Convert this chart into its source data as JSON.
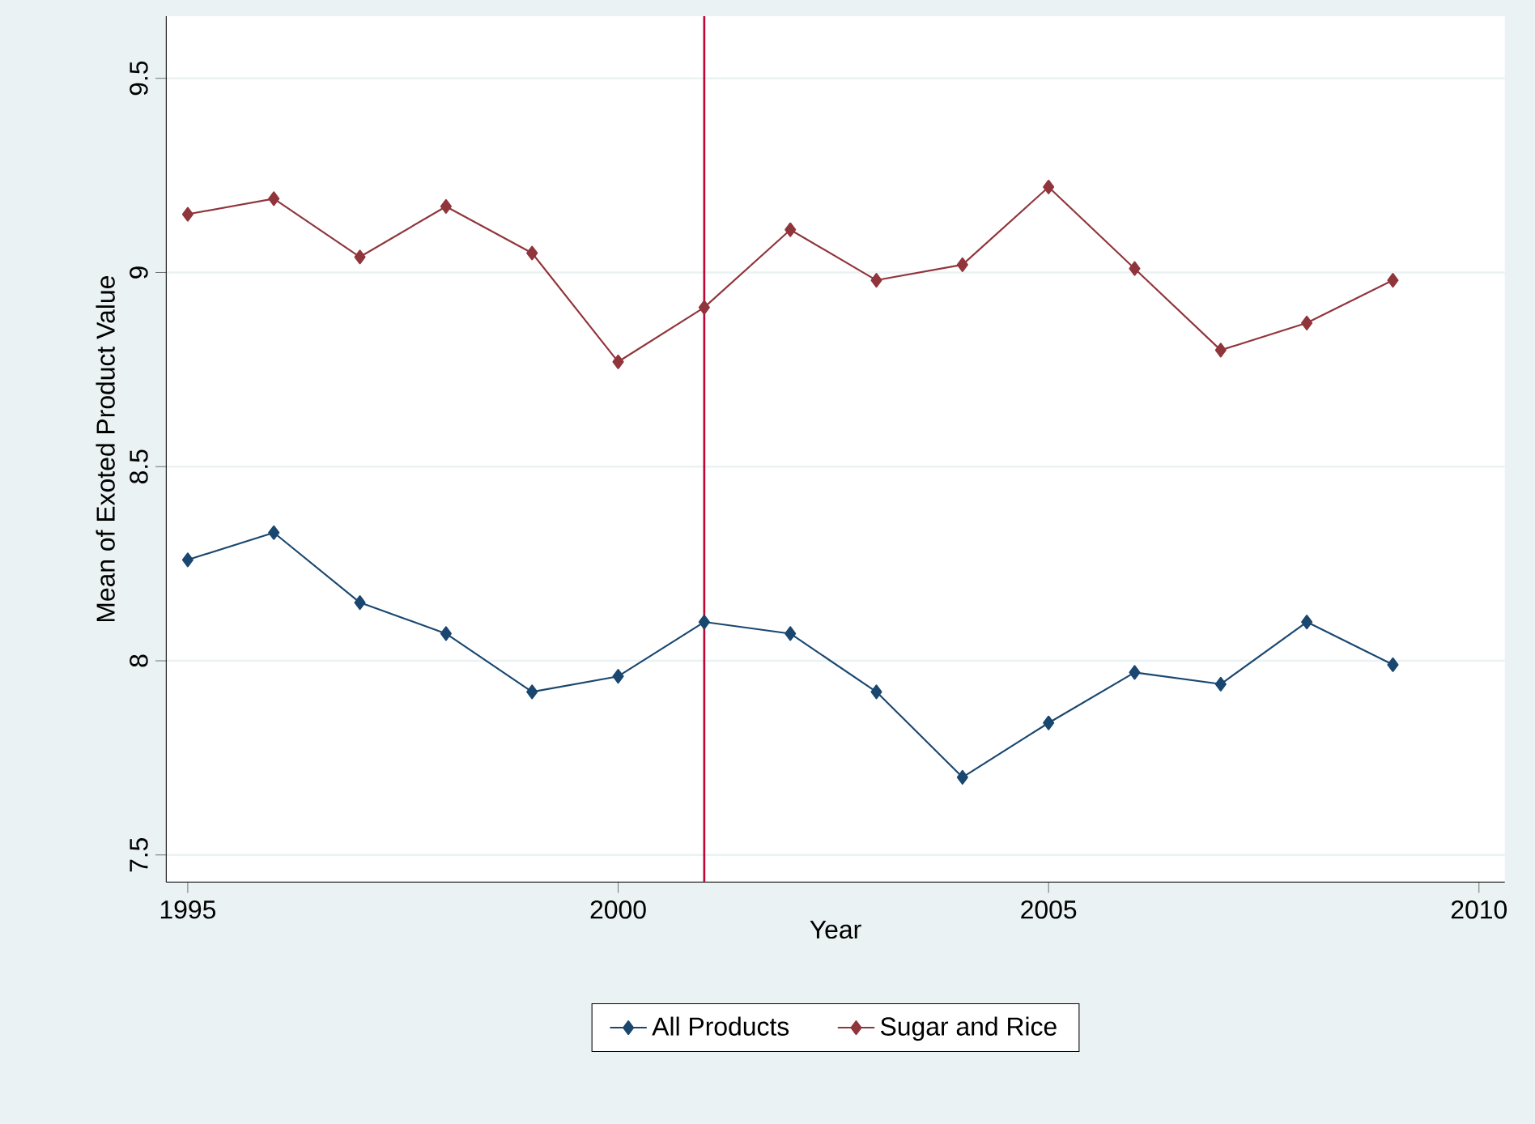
{
  "chart_data": {
    "type": "line",
    "xlabel": "Year",
    "ylabel": "Mean of Exoted Product Value",
    "x": [
      1995,
      1996,
      1997,
      1998,
      1999,
      2000,
      2001,
      2002,
      2003,
      2004,
      2005,
      2006,
      2007,
      2008,
      2009
    ],
    "series": [
      {
        "name": "All Products",
        "color": "#1a476f",
        "values": [
          8.26,
          8.33,
          8.15,
          8.07,
          7.92,
          7.96,
          8.1,
          8.07,
          7.92,
          7.7,
          7.84,
          7.97,
          7.94,
          8.1,
          7.99
        ]
      },
      {
        "name": "Sugar and Rice",
        "color": "#90353b",
        "values": [
          9.15,
          9.19,
          9.04,
          9.17,
          9.05,
          8.77,
          8.91,
          9.11,
          8.98,
          9.02,
          9.22,
          9.01,
          8.8,
          8.87,
          8.98
        ]
      }
    ],
    "xlim": [
      1994.75,
      2010.3
    ],
    "ylim": [
      7.43,
      9.66
    ],
    "xticks": [
      1995,
      2000,
      2005,
      2010
    ],
    "yticks": [
      7.5,
      8,
      8.5,
      9,
      9.5
    ],
    "ref_lines": [
      {
        "axis": "x",
        "value": 2001,
        "color": "#c10534"
      }
    ],
    "grid": "y",
    "legend": "bottom",
    "marker": "diamond",
    "line_style": "solid"
  }
}
